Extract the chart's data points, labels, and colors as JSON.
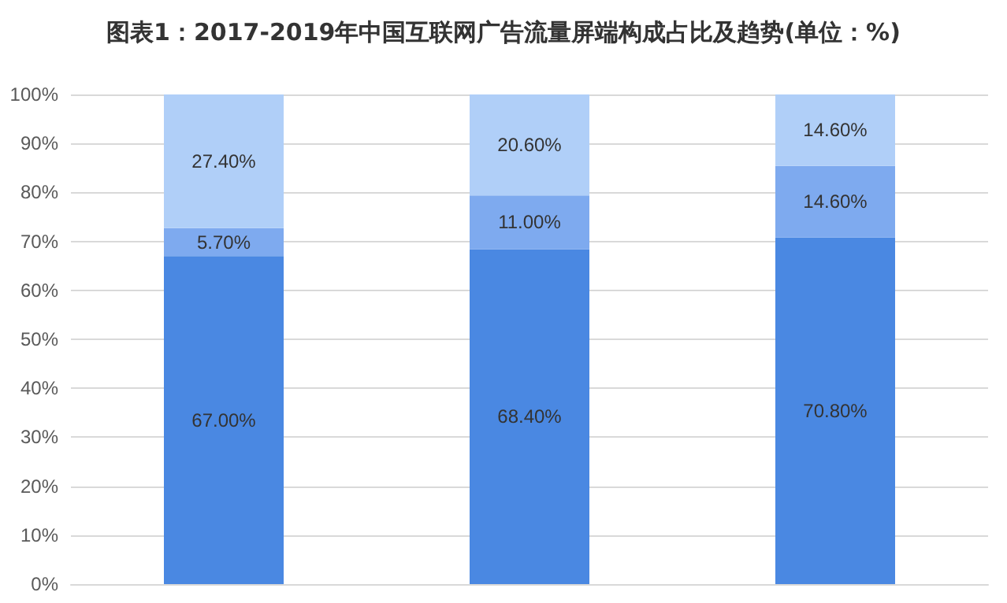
{
  "chart_data": {
    "type": "bar",
    "title": "图表1：2017-2019年中国互联网广告流量屏端构成占比及趋势(单位：%)",
    "categories": [
      null,
      null,
      null
    ],
    "stacked": true,
    "series": [
      {
        "color": "#4a88e2",
        "values": [
          67.0,
          68.4,
          70.8
        ],
        "value_labels": [
          "67.00%",
          "68.40%",
          "70.80%"
        ]
      },
      {
        "color": "#7eaaef",
        "values": [
          5.7,
          11.0,
          14.6
        ],
        "value_labels": [
          "5.70%",
          "11.00%",
          "14.60%"
        ]
      },
      {
        "color": "#b0cff8",
        "values": [
          27.4,
          20.6,
          14.6
        ],
        "value_labels": [
          "27.40%",
          "20.60%",
          "14.60%"
        ]
      }
    ],
    "ylim": [
      0,
      100
    ],
    "yticks": [
      {
        "value": 0,
        "label": "0%"
      },
      {
        "value": 10,
        "label": "10%"
      },
      {
        "value": 20,
        "label": "20%"
      },
      {
        "value": 30,
        "label": "30%"
      },
      {
        "value": 40,
        "label": "40%"
      },
      {
        "value": 50,
        "label": "50%"
      },
      {
        "value": 60,
        "label": "60%"
      },
      {
        "value": 70,
        "label": "70%"
      },
      {
        "value": 80,
        "label": "80%"
      },
      {
        "value": 90,
        "label": "90%"
      },
      {
        "value": 100,
        "label": "100%"
      }
    ],
    "grid": "y"
  }
}
